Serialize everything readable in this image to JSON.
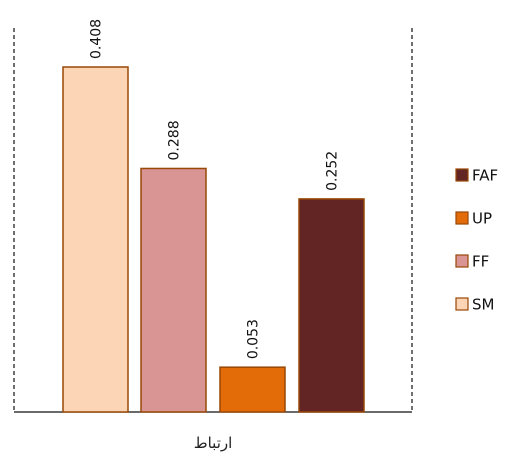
{
  "chart_data": {
    "type": "bar",
    "categories": [
      "ارتباط"
    ],
    "series": [
      {
        "name": "SM",
        "values": [
          0.408
        ],
        "color": "#FBD5B5"
      },
      {
        "name": "FF",
        "values": [
          0.288
        ],
        "color": "#D99594"
      },
      {
        "name": "UP",
        "values": [
          0.053
        ],
        "color": "#E36C09"
      },
      {
        "name": "FAF",
        "values": [
          0.252
        ],
        "color": "#632523"
      }
    ],
    "value_labels": [
      "0.408",
      "0.288",
      "0.053",
      "0.252"
    ],
    "title": "",
    "xlabel": "",
    "ylabel": "",
    "ylim": [
      0,
      0.408
    ],
    "grid": false,
    "legend_position": "right",
    "legend_order": [
      "FAF",
      "UP",
      "FF",
      "SM"
    ],
    "bar_edge_color": "#984807"
  }
}
